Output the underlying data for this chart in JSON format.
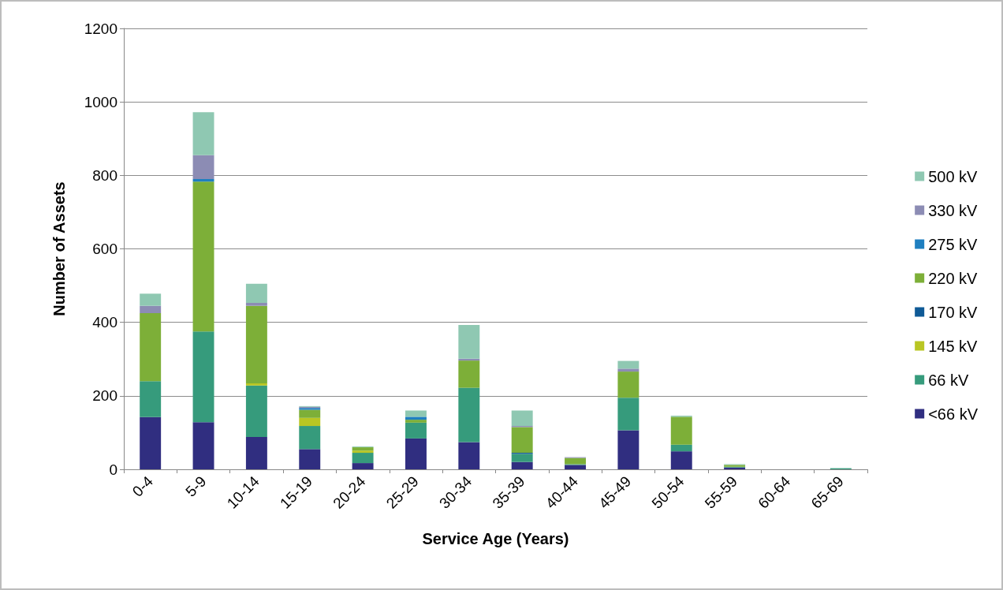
{
  "chart_data": {
    "type": "bar",
    "stacked": true,
    "xlabel": "Service Age (Years)",
    "ylabel": "Number of Assets",
    "categories": [
      "0-4",
      "5-9",
      "10-14",
      "15-19",
      "20-24",
      "25-29",
      "30-34",
      "35-39",
      "40-44",
      "45-49",
      "50-54",
      "55-59",
      "60-64",
      "65-69"
    ],
    "series": [
      {
        "name": "<66 kV",
        "color": "#302e80",
        "values": [
          142,
          128,
          88,
          55,
          17,
          84,
          74,
          20,
          12,
          106,
          49,
          5,
          0,
          0
        ]
      },
      {
        "name": "66 kV",
        "color": "#369b7c",
        "values": [
          98,
          247,
          140,
          63,
          28,
          43,
          148,
          22,
          2,
          89,
          18,
          2,
          0,
          3
        ]
      },
      {
        "name": "145 kV",
        "color": "#b9c623",
        "values": [
          0,
          0,
          6,
          22,
          6,
          0,
          0,
          0,
          0,
          0,
          0,
          0,
          0,
          0
        ]
      },
      {
        "name": "170 kV",
        "color": "#0f5a96",
        "values": [
          0,
          0,
          0,
          0,
          0,
          0,
          0,
          3,
          0,
          0,
          0,
          0,
          0,
          0
        ]
      },
      {
        "name": "220 kV",
        "color": "#7daf38",
        "values": [
          185,
          408,
          211,
          22,
          9,
          8,
          74,
          70,
          17,
          71,
          76,
          5,
          0,
          0
        ]
      },
      {
        "name": "275 kV",
        "color": "#1f7fc0",
        "values": [
          0,
          7,
          0,
          5,
          0,
          8,
          0,
          0,
          0,
          0,
          0,
          0,
          0,
          0
        ]
      },
      {
        "name": "330 kV",
        "color": "#8c8cb4",
        "values": [
          20,
          65,
          8,
          3,
          0,
          0,
          5,
          3,
          2,
          8,
          0,
          0,
          0,
          0
        ]
      },
      {
        "name": "500 kV",
        "color": "#8fc8b2",
        "values": [
          33,
          117,
          52,
          2,
          2,
          17,
          92,
          42,
          0,
          21,
          3,
          2,
          0,
          0
        ]
      }
    ],
    "ylim": [
      0,
      1200
    ],
    "yticks": [
      0,
      200,
      400,
      600,
      800,
      1000,
      1200
    ],
    "grid": "y",
    "legend": "right"
  }
}
